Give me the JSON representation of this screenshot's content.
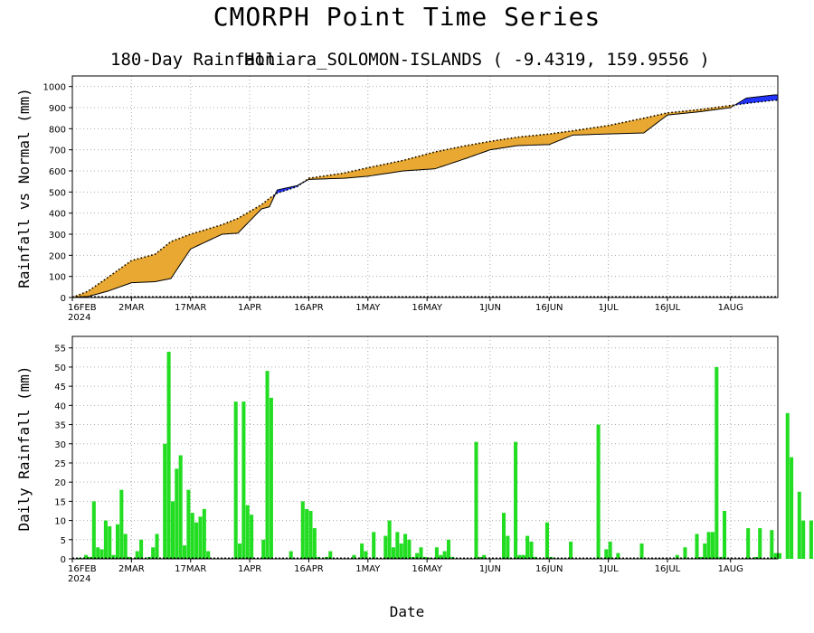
{
  "title": "CMORPH Point Time Series",
  "subtitle_left": "180-Day Rainfall",
  "subtitle_right": "Honiara_SOLOMON-ISLANDS ( -9.4319, 159.9556 )",
  "xlabel": "Date",
  "x_tick_labels": [
    "16FEB",
    "2MAR",
    "17MAR",
    "1APR",
    "16APR",
    "1MAY",
    "16MAY",
    "1JUN",
    "16JUN",
    "1JUL",
    "16JUL",
    "1AUG"
  ],
  "x_tick_year": "2024",
  "colors": {
    "deficit": "#e8a832",
    "surplus": "#2233ff",
    "bars": "#22dd22",
    "grid": "#aaaaaa"
  },
  "chart_data": [
    {
      "type": "area",
      "ylabel": "Rainfall vs Normal (mm)",
      "ylim": [
        0,
        1050
      ],
      "yticks": [
        0,
        100,
        200,
        300,
        400,
        500,
        600,
        700,
        800,
        900,
        1000
      ],
      "x_start": "2024-02-16",
      "x": [
        "2024-02-16",
        "2024-02-20",
        "2024-02-25",
        "2024-03-02",
        "2024-03-08",
        "2024-03-12",
        "2024-03-17",
        "2024-03-25",
        "2024-03-29",
        "2024-04-04",
        "2024-04-06",
        "2024-04-08",
        "2024-04-13",
        "2024-04-16",
        "2024-04-25",
        "2024-05-01",
        "2024-05-10",
        "2024-05-18",
        "2024-05-26",
        "2024-06-01",
        "2024-06-08",
        "2024-06-16",
        "2024-06-22",
        "2024-07-01",
        "2024-07-10",
        "2024-07-16",
        "2024-07-24",
        "2024-08-01",
        "2024-08-05",
        "2024-08-12"
      ],
      "series": [
        {
          "name": "",
          "values": [
            0,
            5,
            30,
            70,
            75,
            90,
            230,
            300,
            305,
            420,
            430,
            510,
            530,
            560,
            565,
            575,
            600,
            610,
            660,
            700,
            720,
            725,
            770,
            775,
            780,
            865,
            880,
            900,
            945,
            960
          ]
        },
        {
          "name": "",
          "values": [
            0,
            30,
            95,
            175,
            205,
            265,
            300,
            345,
            375,
            440,
            470,
            495,
            525,
            565,
            590,
            615,
            650,
            690,
            720,
            740,
            760,
            775,
            790,
            815,
            850,
            875,
            890,
            910,
            920,
            935
          ]
        }
      ]
    },
    {
      "type": "bar",
      "ylabel": "Daily Rainfall (mm)",
      "ylim": [
        0,
        58
      ],
      "yticks": [
        0,
        5,
        10,
        15,
        20,
        25,
        30,
        35,
        40,
        45,
        50,
        55
      ],
      "x_start": "2024-02-16",
      "values": [
        0,
        0.3,
        0.2,
        1,
        0.5,
        15,
        3,
        2.5,
        10,
        8.5,
        1,
        9,
        18,
        6.5,
        0.5,
        0,
        2,
        5,
        0,
        0.5,
        3,
        6.5,
        0,
        30,
        54,
        15,
        23.5,
        27,
        3.5,
        18,
        12,
        9.5,
        11,
        13,
        2,
        0,
        0,
        0,
        0,
        0,
        0,
        41,
        4,
        41,
        14,
        11.5,
        0,
        0,
        5,
        49,
        42,
        0,
        0,
        0,
        0,
        2,
        0,
        0,
        15,
        13,
        12.5,
        8,
        0.5,
        0,
        0.5,
        2,
        0,
        0,
        0,
        0,
        0,
        1,
        0,
        4,
        2,
        0,
        7,
        0,
        0,
        6,
        10,
        3,
        7,
        4,
        6.5,
        5,
        0.5,
        1.5,
        3,
        0.5,
        0.3,
        0,
        3,
        1,
        2,
        5,
        0.5,
        0,
        0,
        0,
        0,
        0,
        30.5,
        0.5,
        1,
        0,
        0,
        0,
        0,
        12,
        6,
        0,
        30.5,
        1,
        1,
        6,
        4.5,
        0.5,
        0,
        0,
        9.5,
        0.5,
        0,
        0,
        0,
        0,
        4.5,
        0,
        0,
        0,
        0,
        0,
        0,
        35,
        0,
        2.5,
        4.5,
        0,
        1.5,
        0,
        0,
        0,
        0,
        0,
        4,
        0,
        0,
        0,
        0,
        0,
        0,
        0,
        0,
        1,
        0,
        3,
        0,
        0,
        6.5,
        0.5,
        4,
        7,
        7,
        50,
        0.5,
        12.5,
        0,
        0,
        0,
        0,
        0,
        8,
        0,
        0.5,
        8,
        0,
        0,
        7.5,
        1.5,
        1.5,
        0,
        38,
        26.5,
        0,
        17.5,
        10,
        0,
        10,
        0
      ]
    }
  ]
}
